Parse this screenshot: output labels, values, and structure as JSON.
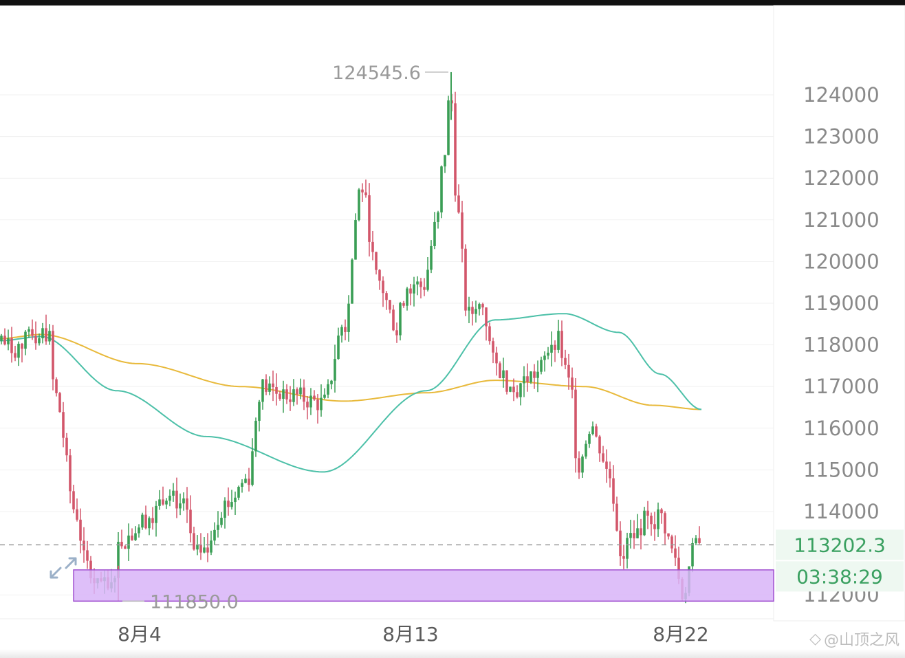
{
  "chart_data": {
    "type": "candlestick",
    "y_axis": {
      "ticks": [
        "124000",
        "123000",
        "122000",
        "121000",
        "120000",
        "119000",
        "118000",
        "117000",
        "116000",
        "115000",
        "114000",
        "112000"
      ],
      "ylim": [
        111600,
        125200
      ]
    },
    "x_axis": {
      "labels": [
        "8月4",
        "8月13",
        "8月22"
      ]
    },
    "high_marker": {
      "label": "124545.6",
      "value": 124545.6
    },
    "low_marker": {
      "label": "111850.0",
      "value": 111850.0
    },
    "current_price": {
      "label": "113202.3",
      "value": 113202.3
    },
    "countdown": "03:38:29",
    "support_zone": {
      "from": 111850,
      "to": 112600
    },
    "colors": {
      "up": "#3a9e55",
      "down": "#d2566a",
      "ma_teal": "#4cc0a8",
      "ma_yellow": "#e8b93a",
      "zone": "#d8b4f8",
      "zone_border": "#a050d0"
    },
    "ma_teal": [
      [
        0,
        118100
      ],
      [
        60,
        118200
      ],
      [
        170,
        116900
      ],
      [
        300,
        115800
      ],
      [
        470,
        114950
      ],
      [
        620,
        116900
      ],
      [
        720,
        118600
      ],
      [
        820,
        118750
      ],
      [
        900,
        118300
      ],
      [
        960,
        117300
      ],
      [
        1020,
        116450
      ]
    ],
    "ma_yellow": [
      [
        0,
        118150
      ],
      [
        60,
        118250
      ],
      [
        200,
        117550
      ],
      [
        350,
        117000
      ],
      [
        500,
        116650
      ],
      [
        620,
        116850
      ],
      [
        720,
        117150
      ],
      [
        850,
        117000
      ],
      [
        950,
        116550
      ],
      [
        1020,
        116450
      ]
    ],
    "anchors": [
      [
        0,
        118100
      ],
      [
        20,
        117900
      ],
      [
        50,
        118200
      ],
      [
        70,
        118300
      ],
      [
        80,
        116800
      ],
      [
        110,
        114000
      ],
      [
        125,
        112700
      ],
      [
        160,
        112100
      ],
      [
        175,
        113300
      ],
      [
        220,
        113900
      ],
      [
        245,
        114500
      ],
      [
        270,
        114000
      ],
      [
        285,
        112800
      ],
      [
        330,
        114200
      ],
      [
        360,
        114800
      ],
      [
        380,
        117000
      ],
      [
        420,
        116800
      ],
      [
        470,
        116600
      ],
      [
        500,
        118500
      ],
      [
        525,
        121800
      ],
      [
        550,
        119500
      ],
      [
        575,
        118500
      ],
      [
        595,
        119500
      ],
      [
        615,
        119400
      ],
      [
        635,
        120900
      ],
      [
        645,
        122500
      ],
      [
        655,
        124100
      ],
      [
        665,
        121200
      ],
      [
        680,
        118700
      ],
      [
        700,
        119000
      ],
      [
        720,
        117500
      ],
      [
        745,
        117000
      ],
      [
        780,
        117300
      ],
      [
        808,
        118200
      ],
      [
        830,
        117000
      ],
      [
        840,
        115100
      ],
      [
        860,
        116100
      ],
      [
        870,
        115600
      ],
      [
        885,
        114900
      ],
      [
        905,
        113000
      ],
      [
        920,
        113400
      ],
      [
        945,
        113900
      ],
      [
        960,
        113900
      ],
      [
        980,
        113000
      ],
      [
        992,
        112000
      ],
      [
        1010,
        113100
      ],
      [
        1020,
        113202
      ]
    ]
  },
  "watermark": {
    "text": "@山顶之风"
  }
}
